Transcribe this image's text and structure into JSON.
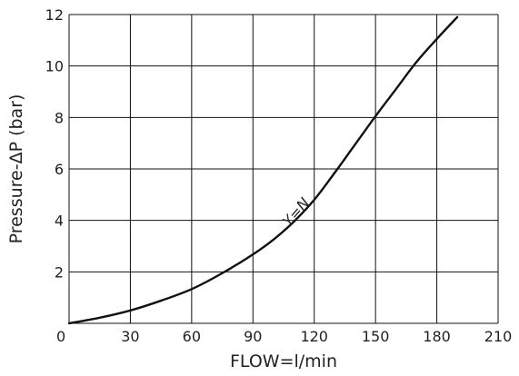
{
  "chart_data": {
    "type": "line",
    "xlabel": "FLOW=l/min",
    "ylabel": "Pressure-ΔP (bar)",
    "xlim": [
      0,
      210
    ],
    "ylim": [
      0,
      12
    ],
    "x_ticks": [
      "0",
      "30",
      "60",
      "90",
      "120",
      "150",
      "180",
      "210"
    ],
    "y_ticks": [
      "2",
      "4",
      "6",
      "8",
      "10",
      "12"
    ],
    "grid": true,
    "series": [
      {
        "name": "Y=N",
        "x": [
          0,
          15,
          30,
          45,
          60,
          75,
          90,
          100,
          110,
          120,
          130,
          140,
          150,
          160,
          170,
          180,
          190
        ],
        "y": [
          0,
          0.22,
          0.5,
          0.88,
          1.33,
          1.95,
          2.68,
          3.25,
          3.95,
          4.8,
          5.85,
          6.95,
          8.05,
          9.1,
          10.15,
          11.05,
          11.9
        ]
      }
    ],
    "annotations": [
      {
        "text": "Y=N",
        "x": 113,
        "y": 4.2
      }
    ],
    "colors": {
      "line": "#111111",
      "grid": "#111111"
    }
  }
}
